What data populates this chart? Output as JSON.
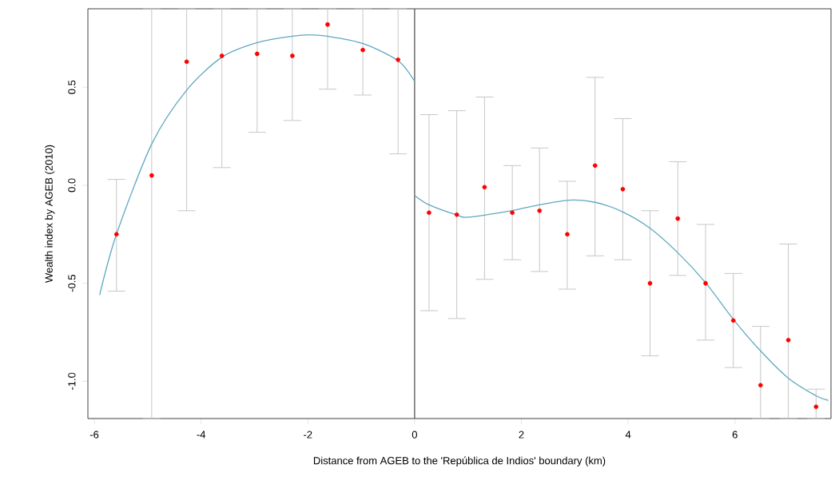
{
  "chart_data": {
    "type": "scatter",
    "xlabel": "Distance from AGEB to the 'República de Indios' boundary (km)",
    "ylabel": "Wealth index by AGEB (2010)",
    "xlim": [
      -6.12,
      7.8
    ],
    "ylim": [
      -1.19,
      0.9
    ],
    "xticks": [
      -6,
      -4,
      -2,
      0,
      2,
      4,
      6
    ],
    "yticks": [
      {
        "value": -1,
        "label": "-1.0"
      },
      -0.5,
      {
        "value": 0,
        "label": "0.0"
      },
      0.5
    ],
    "grid": false,
    "ref_lines": [
      {
        "axis": "x",
        "value": 0,
        "color": "#555555"
      }
    ],
    "series": [
      {
        "color": "#ff0000",
        "marker": "circle",
        "x": [
          -5.585,
          -4.925,
          -4.27,
          -3.61,
          -2.95,
          -2.29,
          -1.63,
          -0.97,
          -0.31,
          0.27,
          0.79,
          1.31,
          1.83,
          2.34,
          2.86,
          3.38,
          3.9,
          4.41,
          4.93,
          5.45,
          5.97,
          6.48,
          7.0,
          7.52
        ],
        "values": [
          -0.25,
          0.05,
          0.63,
          0.66,
          0.67,
          0.66,
          0.82,
          0.69,
          0.64,
          -0.14,
          -0.15,
          -0.01,
          -0.14,
          -0.13,
          -0.25,
          0.1,
          -0.02,
          -0.5,
          -0.17,
          -0.5,
          -0.69,
          -1.02,
          -0.79,
          -1.13
        ],
        "errors": [
          [
            -0.54,
            0.03
          ],
          [
            -1.19,
            0.9
          ],
          [
            -0.13,
            0.9
          ],
          [
            0.09,
            0.9
          ],
          [
            0.27,
            0.9
          ],
          [
            0.33,
            0.9
          ],
          [
            0.49,
            0.9
          ],
          [
            0.46,
            0.9
          ],
          [
            0.16,
            0.9
          ],
          [
            -0.64,
            0.36
          ],
          [
            -0.68,
            0.38
          ],
          [
            -0.48,
            0.45
          ],
          [
            -0.38,
            0.1
          ],
          [
            -0.44,
            0.19
          ],
          [
            -0.53,
            0.02
          ],
          [
            -0.36,
            0.55
          ],
          [
            -0.38,
            0.34
          ],
          [
            -0.87,
            -0.13
          ],
          [
            -0.46,
            0.12
          ],
          [
            -0.79,
            -0.2
          ],
          [
            -0.93,
            -0.45
          ],
          [
            -1.19,
            -0.72
          ],
          [
            -1.19,
            -0.3
          ],
          [
            -1.19,
            -1.04
          ]
        ]
      },
      {
        "type": "line",
        "color": "#5fa8c0",
        "x": [
          -5.9,
          -5.585,
          -4.925,
          -4.27,
          -3.61,
          -2.95,
          -2.29,
          -1.98,
          -1.63,
          -0.97,
          -0.31,
          0
        ],
        "values": [
          -0.56,
          -0.25,
          0.21,
          0.485,
          0.653,
          0.727,
          0.76,
          0.767,
          0.76,
          0.723,
          0.635,
          0.53
        ]
      },
      {
        "type": "line",
        "color": "#5fa8c0",
        "x": [
          0,
          0.27,
          0.79,
          1.0,
          1.83,
          2.34,
          2.9,
          3.38,
          3.9,
          4.41,
          4.93,
          5.45,
          5.97,
          6.48,
          7.0,
          7.52,
          7.75
        ],
        "values": [
          -0.052,
          -0.1,
          -0.152,
          -0.163,
          -0.129,
          -0.1,
          -0.076,
          -0.087,
          -0.136,
          -0.219,
          -0.344,
          -0.497,
          -0.684,
          -0.845,
          -0.984,
          -1.074,
          -1.098
        ]
      }
    ]
  }
}
